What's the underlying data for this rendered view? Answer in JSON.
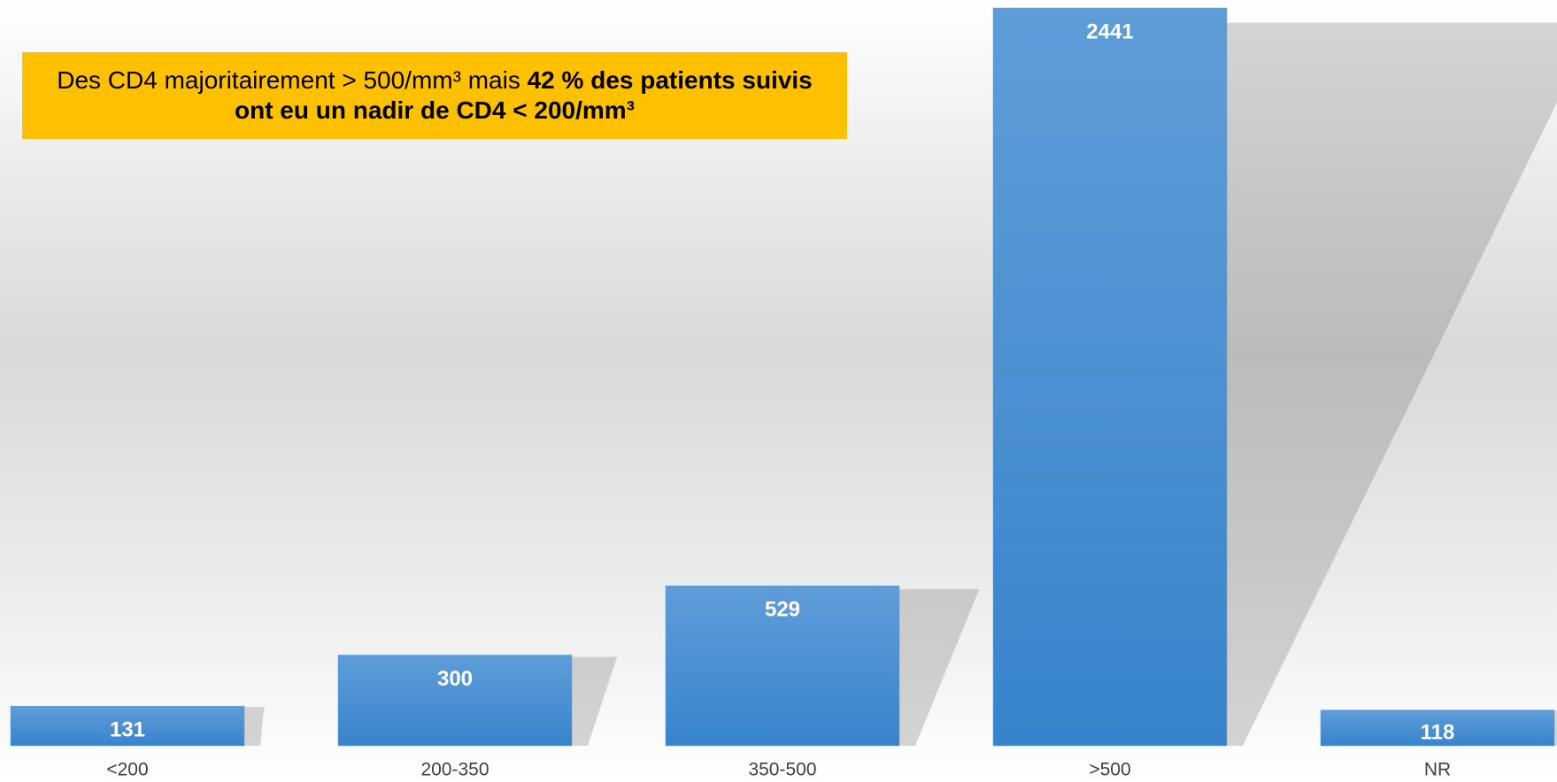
{
  "chart_data": {
    "type": "bar",
    "annotation": [
      "Des CD4 majoritairement > 500/mm³ mais ",
      "42 % des patients suivis ont eu un nadir de CD4 < 200/mm³"
    ],
    "categories": [
      "<200",
      "200-350",
      "350-500",
      ">500",
      "NR"
    ],
    "values": [
      131,
      300,
      529,
      2441,
      118
    ],
    "color": "#5b9bd5"
  }
}
